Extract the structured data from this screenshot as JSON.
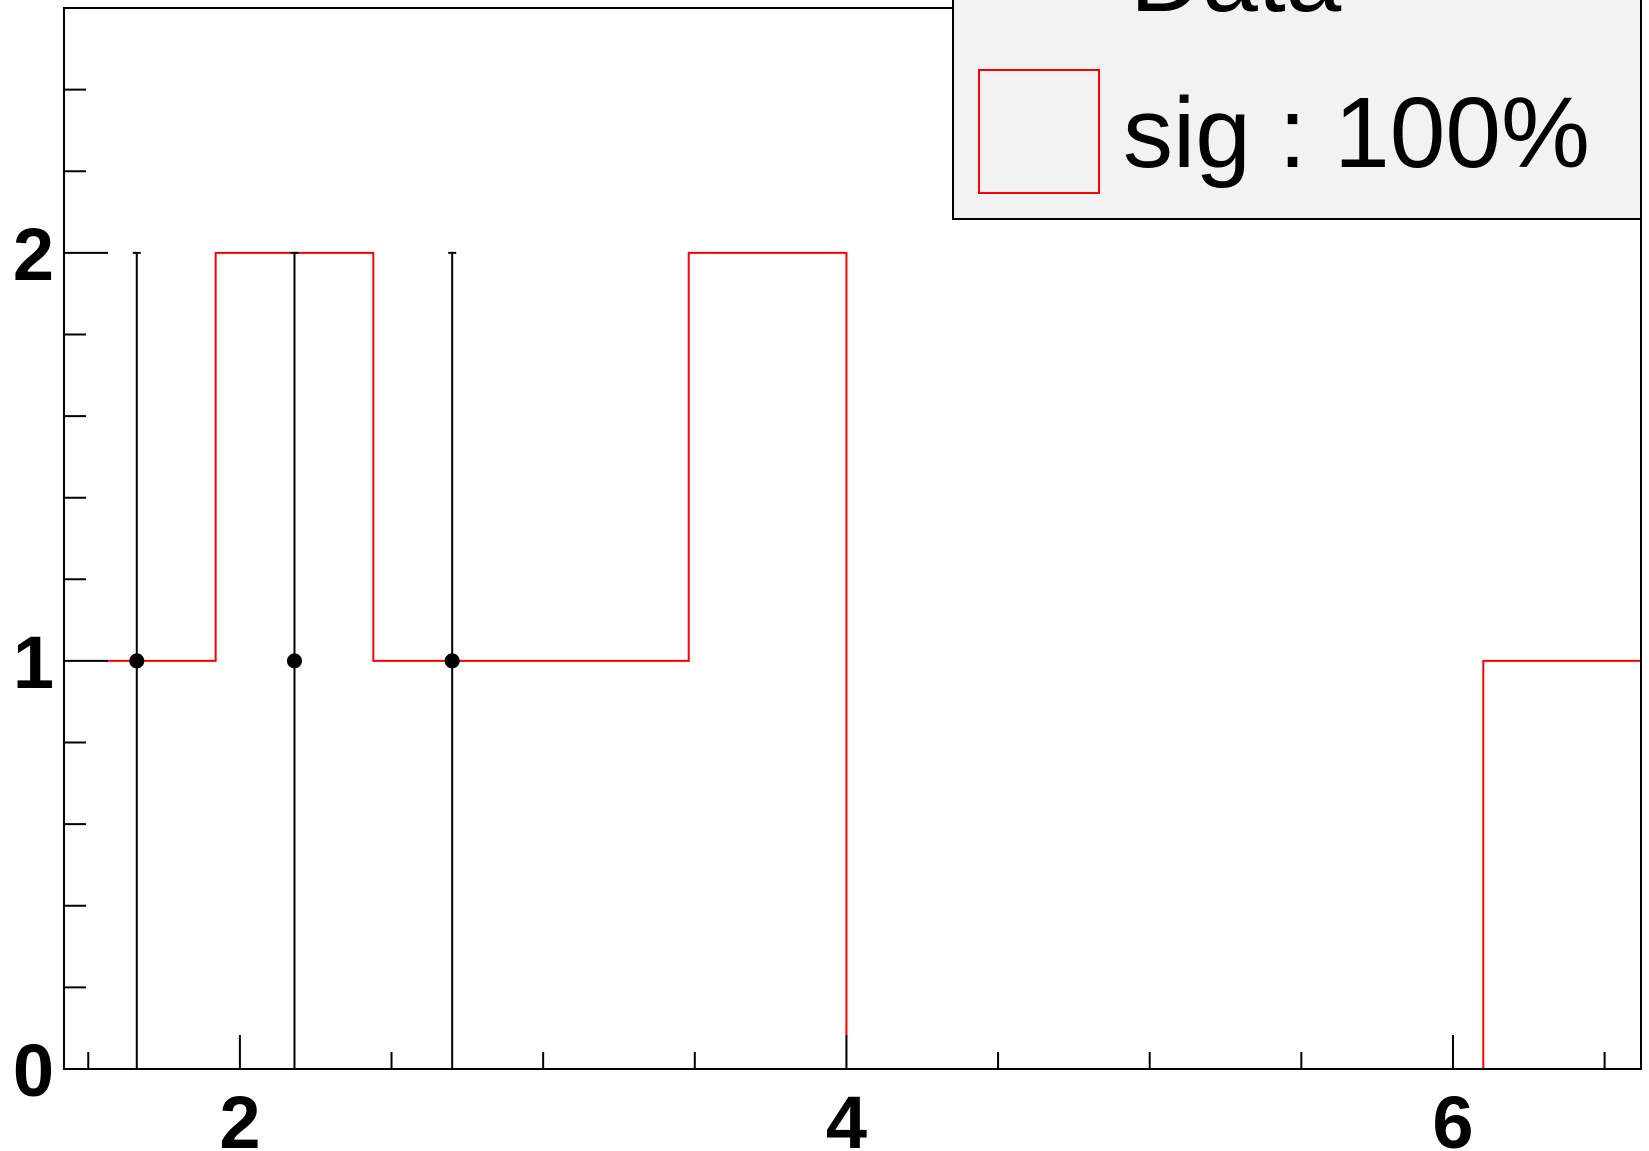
{
  "chart_data": {
    "type": "bar",
    "title": "",
    "xlabel": "",
    "ylabel": "",
    "xlim": [
      1.42,
      6.62
    ],
    "ylim": [
      0,
      2.6
    ],
    "x_ticks": [
      {
        "value": 2,
        "label": "2"
      },
      {
        "value": 4,
        "label": "4"
      },
      {
        "value": 6,
        "label": "6"
      }
    ],
    "y_ticks": [
      {
        "value": 0,
        "label": "0"
      },
      {
        "value": 1,
        "label": "1"
      },
      {
        "value": 2,
        "label": "2"
      }
    ],
    "grid": false,
    "legend_position": "top-right",
    "series": [
      {
        "name": "Data",
        "kind": "points-with-errors",
        "color": "#000000",
        "x": [
          1.66,
          2.18,
          2.7
        ],
        "y": [
          1,
          1,
          1
        ],
        "err": [
          1,
          1,
          1
        ]
      },
      {
        "name": "sig : 100%",
        "kind": "step-histogram",
        "color": "#ff0000",
        "edges": [
          1.56,
          1.92,
          2.44,
          2.96,
          3.48,
          4.0,
          6.1,
          6.62
        ],
        "values": [
          1,
          2,
          1,
          1,
          2,
          0,
          1
        ]
      }
    ]
  },
  "legend": {
    "entries": [
      {
        "label": "Data",
        "color": "#000000"
      },
      {
        "label": "sig : 100%",
        "color": "#ff0000"
      }
    ]
  }
}
